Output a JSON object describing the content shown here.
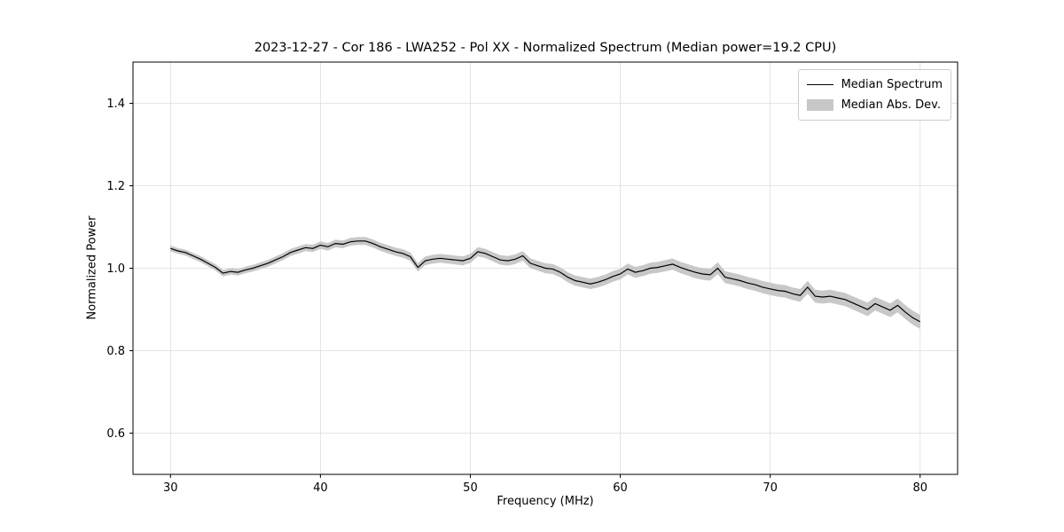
{
  "chart_data": {
    "type": "line",
    "title": "2023-12-27 - Cor 186 - LWA252 - Pol XX - Normalized Spectrum (Median power=19.2 CPU)",
    "xlabel": "Frequency (MHz)",
    "ylabel": "Normalized Power",
    "xlim": [
      27.5,
      82.5
    ],
    "ylim": [
      0.5,
      1.5
    ],
    "xticks": [
      30,
      40,
      50,
      60,
      70,
      80
    ],
    "yticks": [
      0.6,
      0.8,
      1.0,
      1.2,
      1.4
    ],
    "grid": true,
    "grid_color": "#dcdcdc",
    "line_color": "#000000",
    "legend": {
      "position": "upper right",
      "entries": [
        {
          "label": "Median Spectrum",
          "type": "line",
          "color": "#000000"
        },
        {
          "label": "Median Abs. Dev.",
          "type": "patch",
          "color": "#c8c8c8"
        }
      ]
    },
    "band": {
      "name": "Median Abs. Dev.",
      "halfwidth_start": 0.007,
      "halfwidth_end": 0.017,
      "color": "#c8c8c8"
    },
    "series": [
      {
        "name": "Median Spectrum",
        "x": [
          30,
          30.5,
          31,
          31.5,
          32,
          32.5,
          33,
          33.5,
          34,
          34.5,
          35,
          35.5,
          36,
          36.5,
          37,
          37.5,
          38,
          38.5,
          39,
          39.5,
          40,
          40.5,
          41,
          41.5,
          42,
          42.5,
          43,
          43.5,
          44,
          44.5,
          45,
          45.5,
          46,
          46.5,
          47,
          47.5,
          48,
          48.5,
          49,
          49.5,
          50,
          50.5,
          51,
          51.5,
          52,
          52.5,
          53,
          53.5,
          54,
          54.5,
          55,
          55.5,
          56,
          56.5,
          57,
          57.5,
          58,
          58.5,
          59,
          59.5,
          60,
          60.5,
          61,
          61.5,
          62,
          62.5,
          63,
          63.5,
          64,
          64.5,
          65,
          65.5,
          66,
          66.5,
          67,
          67.5,
          68,
          68.5,
          69,
          69.5,
          70,
          70.5,
          71,
          71.5,
          72,
          72.5,
          73,
          73.5,
          74,
          74.5,
          75,
          75.5,
          76,
          76.5,
          77,
          77.5,
          78,
          78.5,
          79,
          79.5,
          80
        ],
        "y": [
          1.048,
          1.042,
          1.038,
          1.03,
          1.022,
          1.012,
          1.002,
          0.988,
          0.992,
          0.99,
          0.996,
          1.0,
          1.006,
          1.012,
          1.02,
          1.028,
          1.038,
          1.044,
          1.05,
          1.048,
          1.056,
          1.052,
          1.06,
          1.058,
          1.064,
          1.066,
          1.066,
          1.06,
          1.052,
          1.046,
          1.04,
          1.036,
          1.028,
          1.002,
          1.018,
          1.022,
          1.024,
          1.022,
          1.02,
          1.018,
          1.024,
          1.04,
          1.036,
          1.028,
          1.02,
          1.018,
          1.022,
          1.03,
          1.012,
          1.006,
          1.0,
          0.998,
          0.99,
          0.978,
          0.97,
          0.966,
          0.962,
          0.966,
          0.972,
          0.98,
          0.986,
          0.998,
          0.99,
          0.994,
          1.0,
          1.002,
          1.006,
          1.01,
          1.002,
          0.996,
          0.99,
          0.986,
          0.984,
          1.0,
          0.978,
          0.974,
          0.97,
          0.964,
          0.96,
          0.954,
          0.95,
          0.946,
          0.944,
          0.938,
          0.934,
          0.954,
          0.932,
          0.93,
          0.932,
          0.928,
          0.924,
          0.916,
          0.908,
          0.9,
          0.914,
          0.906,
          0.898,
          0.91,
          0.894,
          0.88,
          0.87
        ]
      }
    ]
  }
}
